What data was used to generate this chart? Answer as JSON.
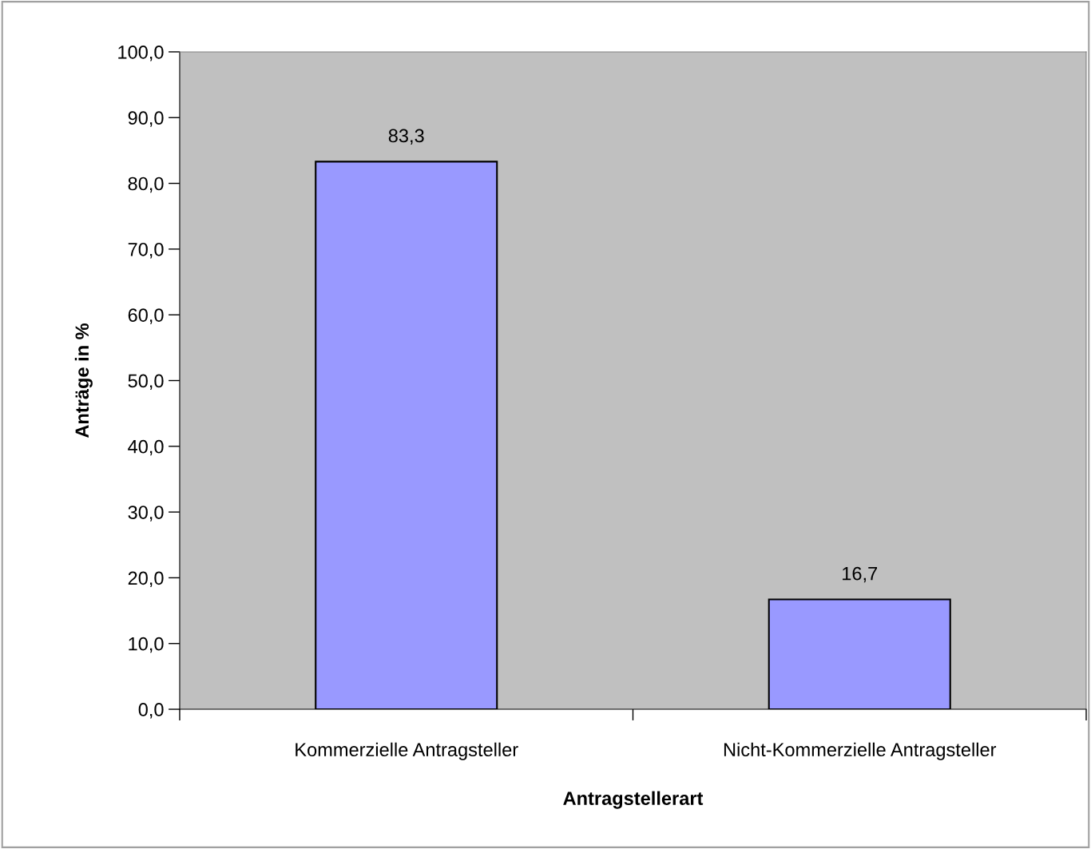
{
  "chart_data": {
    "type": "bar",
    "xlabel": "Antragstellerart",
    "ylabel": "Anträge in %",
    "categories": [
      "Kommerzielle Antragsteller",
      "Nicht-Kommerzielle Antragsteller"
    ],
    "values": [
      83.3,
      16.7
    ],
    "value_labels": [
      "83,3",
      "16,7"
    ],
    "color": "#9999ff",
    "ylim": [
      0,
      100
    ],
    "yticks": [
      {
        "value": 0,
        "label": "0,0"
      },
      {
        "value": 10,
        "label": "10,0"
      },
      {
        "value": 20,
        "label": "20,0"
      },
      {
        "value": 30,
        "label": "30,0"
      },
      {
        "value": 40,
        "label": "40,0"
      },
      {
        "value": 50,
        "label": "50,0"
      },
      {
        "value": 60,
        "label": "60,0"
      },
      {
        "value": 70,
        "label": "70,0"
      },
      {
        "value": 80,
        "label": "80,0"
      },
      {
        "value": 90,
        "label": "90,0"
      },
      {
        "value": 100,
        "label": "100,0"
      }
    ],
    "grid": false,
    "legend": false
  }
}
